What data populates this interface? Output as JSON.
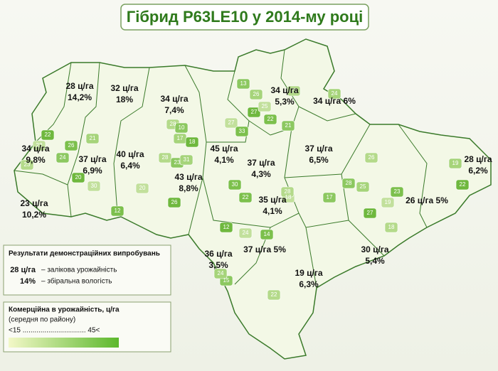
{
  "title": "Гібрид P63LE10 у 2014-му році",
  "regions": [
    {
      "lines": [
        "28 ц/га",
        "14,2%"
      ]
    },
    {
      "lines": [
        "32 ц/га",
        "18%"
      ]
    },
    {
      "lines": [
        "34 ц/га",
        "7,4%"
      ]
    },
    {
      "lines": [
        "34 ц/га",
        "5,3%"
      ]
    },
    {
      "lines": [
        "34 ц/га 6%"
      ]
    },
    {
      "lines": [
        "34 ц/га",
        "9,8%"
      ]
    },
    {
      "lines": [
        "37 ц/га",
        "6,9%"
      ]
    },
    {
      "lines": [
        "40 ц/га",
        "6,4%"
      ]
    },
    {
      "lines": [
        "45 ц/га",
        "4,1%"
      ]
    },
    {
      "lines": [
        "37 ц/га",
        "4,3%"
      ]
    },
    {
      "lines": [
        "37 ц/га",
        "6,5%"
      ]
    },
    {
      "lines": [
        "28 ц/га",
        "6,2%"
      ]
    },
    {
      "lines": [
        "43 ц/га",
        "8,8%"
      ]
    },
    {
      "lines": [
        "23 ц/га",
        "10,2%"
      ]
    },
    {
      "lines": [
        "35 ц/га",
        "4,1%"
      ]
    },
    {
      "lines": [
        "26 ц/га 5%"
      ]
    },
    {
      "lines": [
        "36 ц/га",
        "3,5%"
      ]
    },
    {
      "lines": [
        "37 ц/га 5%"
      ]
    },
    {
      "lines": [
        "30 ц/га",
        "5,4%"
      ]
    },
    {
      "lines": [
        "19 ц/га",
        "6,3%"
      ]
    }
  ],
  "districts": [
    13,
    26,
    27,
    25,
    22,
    29,
    21,
    24,
    22,
    22,
    26,
    23,
    24,
    21,
    20,
    30,
    12,
    28,
    10,
    17,
    18,
    27,
    33,
    28,
    23,
    31,
    26,
    20,
    30,
    26,
    28,
    25,
    27,
    19,
    23,
    18,
    17,
    19,
    22,
    24,
    14,
    22,
    15,
    24,
    12,
    18,
    22,
    28
  ],
  "legend_results": {
    "title": "Результати демонстраційних випробувань",
    "yield_example": "28 ц/га",
    "yield_text": "– залікова урожайність",
    "moisture_example": "14%",
    "moisture_text": "– збіральна вологість"
  },
  "legend_commercial": {
    "title": "Комерційна в урожайність, ц/га",
    "subtitle": "(середня по району)",
    "scale": "<15 ................................ 45<"
  }
}
